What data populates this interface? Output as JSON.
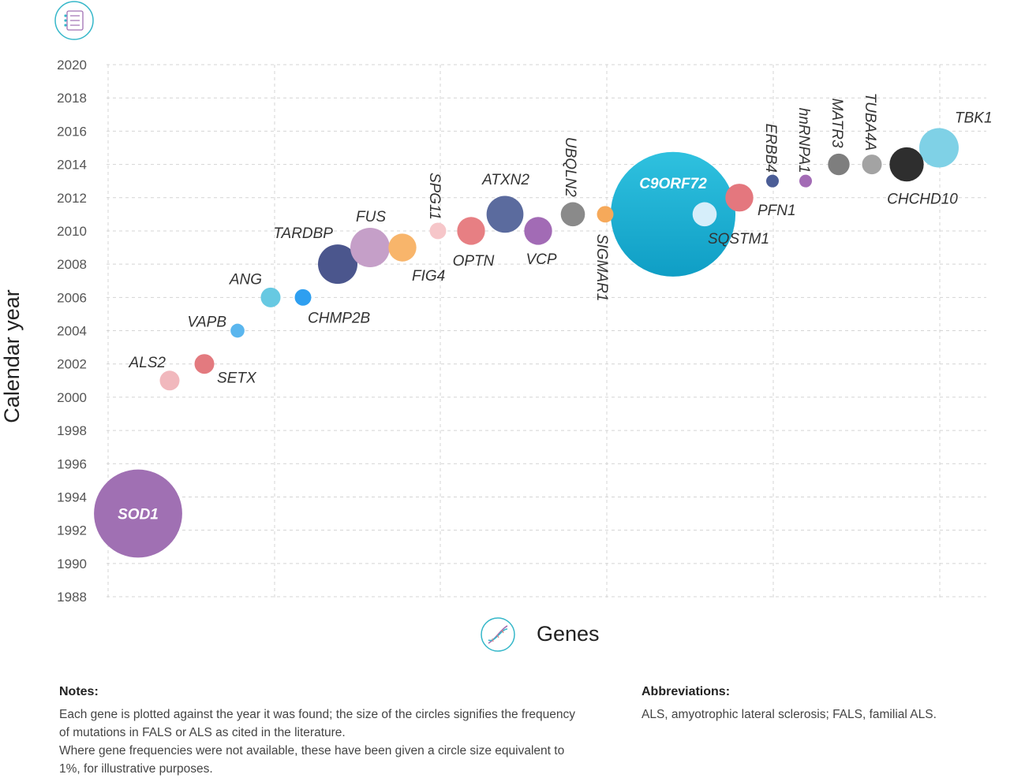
{
  "chart_data": {
    "type": "scatter",
    "title": "",
    "xlabel": "Genes",
    "ylabel": "Calendar year",
    "ylim": [
      1988,
      2020
    ],
    "yticks": [
      "2020",
      "2018",
      "2016",
      "2014",
      "2012",
      "2010",
      "2008",
      "2006",
      "2004",
      "2002",
      "2000",
      "1998",
      "1996",
      "1994",
      "1992",
      "1990",
      "1988"
    ],
    "grid": "dashed",
    "points": [
      {
        "gene": "SOD1",
        "year": 1993,
        "size": 20,
        "color": "#a070b3"
      },
      {
        "gene": "ALS2",
        "year": 2001,
        "size": 1,
        "color": "#f1b8bd"
      },
      {
        "gene": "SETX",
        "year": 2002,
        "size": 1,
        "color": "#e37a7f"
      },
      {
        "gene": "VAPB",
        "year": 2004,
        "size": 0.5,
        "color": "#5ab6ee"
      },
      {
        "gene": "ANG",
        "year": 2006,
        "size": 1,
        "color": "#67c9e2"
      },
      {
        "gene": "CHMP2B",
        "year": 2006,
        "size": 0.7,
        "color": "#2e9ff0"
      },
      {
        "gene": "TARDBP",
        "year": 2008,
        "size": 4,
        "color": "#4b568d"
      },
      {
        "gene": "FUS",
        "year": 2009,
        "size": 4,
        "color": "#c59fc8"
      },
      {
        "gene": "FIG4",
        "year": 2009,
        "size": 2,
        "color": "#f8b56b"
      },
      {
        "gene": "SPG11",
        "year": 2010,
        "size": 0.7,
        "color": "#f6c6c9"
      },
      {
        "gene": "OPTN",
        "year": 2010,
        "size": 2,
        "color": "#e77f83"
      },
      {
        "gene": "ATXN2",
        "year": 2011,
        "size": 3.5,
        "color": "#5b6b9e"
      },
      {
        "gene": "VCP",
        "year": 2010,
        "size": 2,
        "color": "#a26bb5"
      },
      {
        "gene": "UBQLN2",
        "year": 2011,
        "size": 1.5,
        "color": "#8a8a8a"
      },
      {
        "gene": "SIGMAR1",
        "year": 2011,
        "size": 0.7,
        "color": "#f6a95a"
      },
      {
        "gene": "C9ORF72",
        "year": 2011,
        "size": 40,
        "color": "#19a8cc"
      },
      {
        "gene": "SQSTM1",
        "year": 2011,
        "size": 1.5,
        "color": "#d6eefa"
      },
      {
        "gene": "PFN1",
        "year": 2012,
        "size": 2,
        "color": "#e4777e"
      },
      {
        "gene": "ERBB4",
        "year": 2013,
        "size": 0.3,
        "color": "#4b5d96"
      },
      {
        "gene": "hnRNPA1",
        "year": 2013,
        "size": 0.3,
        "color": "#a36bb5"
      },
      {
        "gene": "MATR3",
        "year": 2014,
        "size": 1.2,
        "color": "#7e7e7e"
      },
      {
        "gene": "TUBA4A",
        "year": 2014,
        "size": 1,
        "color": "#a3a3a3"
      },
      {
        "gene": "CHCHD10",
        "year": 2014,
        "size": 3,
        "color": "#2e2e2e"
      },
      {
        "gene": "TBK1",
        "year": 2015,
        "size": 4,
        "color": "#7fd1e6"
      }
    ]
  },
  "notes": {
    "heading": "Notes:",
    "line1": "Each gene is plotted against the year it was found; the size of the circles signifies the frequency of mutations in FALS or ALS as cited in the literature.",
    "line2": "Where gene frequencies were not available, these have been given a circle size equivalent to 1%, for illustrative purposes."
  },
  "abbreviations": {
    "heading": "Abbreviations:",
    "text": "ALS, amyotrophic lateral sclerosis; FALS, familial ALS."
  },
  "icons": {
    "top": "chart-icon",
    "genes": "dna-icon",
    "accent": "#35b7c9"
  }
}
